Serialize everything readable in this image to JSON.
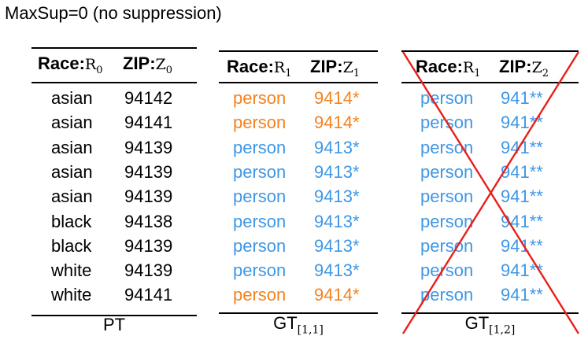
{
  "title": "MaxSup=0 (no suppression)",
  "colors": {
    "black": "#000000",
    "orange": "#f5821f",
    "blue": "#3f97e6",
    "cross": "#e8201b"
  },
  "tables": [
    {
      "header": {
        "c1_label": "Race:",
        "c1_math": "R",
        "c1_sub": "0",
        "c2_label": "ZIP:",
        "c2_math": "Z",
        "c2_sub": "0"
      },
      "caption": "PT",
      "caption_sub": "",
      "rows": [
        {
          "race": "asian",
          "zip": "94142",
          "color": "black"
        },
        {
          "race": "asian",
          "zip": "94141",
          "color": "black"
        },
        {
          "race": "asian",
          "zip": "94139",
          "color": "black"
        },
        {
          "race": "asian",
          "zip": "94139",
          "color": "black"
        },
        {
          "race": "asian",
          "zip": "94139",
          "color": "black"
        },
        {
          "race": "black",
          "zip": "94138",
          "color": "black"
        },
        {
          "race": "black",
          "zip": "94139",
          "color": "black"
        },
        {
          "race": "white",
          "zip": "94139",
          "color": "black"
        },
        {
          "race": "white",
          "zip": "94141",
          "color": "black"
        }
      ]
    },
    {
      "header": {
        "c1_label": "Race:",
        "c1_math": "R",
        "c1_sub": "1",
        "c2_label": "ZIP:",
        "c2_math": "Z",
        "c2_sub": "1"
      },
      "caption": "GT",
      "caption_sub": "[1,1]",
      "rows": [
        {
          "race": "person",
          "zip": "9414*",
          "color": "orange"
        },
        {
          "race": "person",
          "zip": "9414*",
          "color": "orange"
        },
        {
          "race": "person",
          "zip": "9413*",
          "color": "blue"
        },
        {
          "race": "person",
          "zip": "9413*",
          "color": "blue"
        },
        {
          "race": "person",
          "zip": "9413*",
          "color": "blue"
        },
        {
          "race": "person",
          "zip": "9413*",
          "color": "blue"
        },
        {
          "race": "person",
          "zip": "9413*",
          "color": "blue"
        },
        {
          "race": "person",
          "zip": "9413*",
          "color": "blue"
        },
        {
          "race": "person",
          "zip": "9414*",
          "color": "orange"
        }
      ]
    },
    {
      "header": {
        "c1_label": "Race:",
        "c1_math": "R",
        "c1_sub": "1",
        "c2_label": "ZIP:",
        "c2_math": "Z",
        "c2_sub": "2"
      },
      "caption": "GT",
      "caption_sub": "[1,2]",
      "crossed_out": true,
      "rows": [
        {
          "race": "person",
          "zip": "941**",
          "color": "blue"
        },
        {
          "race": "person",
          "zip": "941**",
          "color": "blue"
        },
        {
          "race": "person",
          "zip": "941**",
          "color": "blue"
        },
        {
          "race": "person",
          "zip": "941**",
          "color": "blue"
        },
        {
          "race": "person",
          "zip": "941**",
          "color": "blue"
        },
        {
          "race": "person",
          "zip": "941**",
          "color": "blue"
        },
        {
          "race": "person",
          "zip": "941**",
          "color": "blue"
        },
        {
          "race": "person",
          "zip": "941**",
          "color": "blue"
        },
        {
          "race": "person",
          "zip": "941**",
          "color": "blue"
        }
      ]
    }
  ]
}
